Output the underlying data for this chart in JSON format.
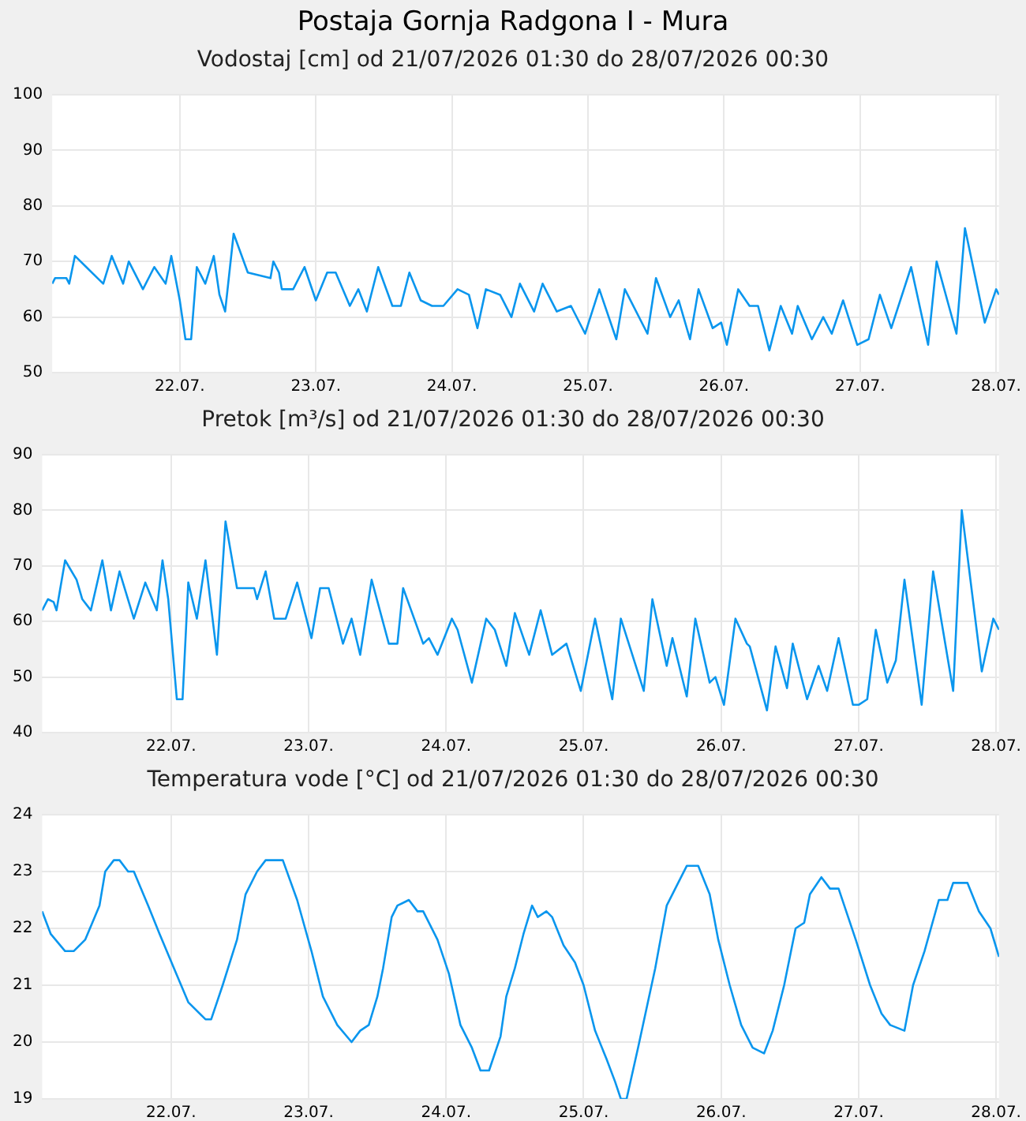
{
  "chart_data": [
    {
      "type": "line",
      "title": "Postaja Gornja Radgona I - Mura",
      "subtitle": "Vodostaj [cm] od 21/07/2026 01:30 do 28/07/2026 00:30",
      "color": "#0a96ee",
      "grid": true,
      "legend": false,
      "xlim": [
        "2026-07-21T01:30",
        "2026-07-28T00:30"
      ],
      "xticks": [
        {
          "value": "2026-07-22",
          "label": "22.07."
        },
        {
          "value": "2026-07-23",
          "label": "23.07."
        },
        {
          "value": "2026-07-24",
          "label": "24.07."
        },
        {
          "value": "2026-07-25",
          "label": "25.07."
        },
        {
          "value": "2026-07-26",
          "label": "26.07."
        },
        {
          "value": "2026-07-27",
          "label": "27.07."
        },
        {
          "value": "2026-07-28",
          "label": "28.07."
        }
      ],
      "ylim": [
        50,
        100
      ],
      "yticks": [
        50,
        60,
        70,
        80,
        90,
        100
      ],
      "x": [
        "2026-07-21T01:30",
        "2026-07-21T02:00",
        "2026-07-21T04:00",
        "2026-07-21T04:30",
        "2026-07-21T05:30",
        "2026-07-21T07:30",
        "2026-07-21T09:30",
        "2026-07-21T10:30",
        "2026-07-21T12:00",
        "2026-07-21T14:00",
        "2026-07-21T15:00",
        "2026-07-21T17:30",
        "2026-07-21T19:30",
        "2026-07-21T21:30",
        "2026-07-21T22:30",
        "2026-07-22T00:00",
        "2026-07-22T01:00",
        "2026-07-22T02:00",
        "2026-07-22T03:00",
        "2026-07-22T04:30",
        "2026-07-22T06:00",
        "2026-07-22T07:00",
        "2026-07-22T08:00",
        "2026-07-22T09:30",
        "2026-07-22T12:00",
        "2026-07-22T16:00",
        "2026-07-22T16:30",
        "2026-07-22T17:30",
        "2026-07-22T18:00",
        "2026-07-22T20:00",
        "2026-07-22T22:00",
        "2026-07-23T00:00",
        "2026-07-23T02:00",
        "2026-07-23T03:30",
        "2026-07-23T06:00",
        "2026-07-23T07:30",
        "2026-07-23T09:00",
        "2026-07-23T11:00",
        "2026-07-23T13:30",
        "2026-07-23T15:00",
        "2026-07-23T16:30",
        "2026-07-23T18:30",
        "2026-07-23T20:30",
        "2026-07-23T22:30",
        "2026-07-24T01:00",
        "2026-07-24T03:00",
        "2026-07-24T04:30",
        "2026-07-24T06:00",
        "2026-07-24T08:30",
        "2026-07-24T10:30",
        "2026-07-24T12:00",
        "2026-07-24T14:30",
        "2026-07-24T16:00",
        "2026-07-24T18:30",
        "2026-07-24T21:00",
        "2026-07-24T23:30",
        "2026-07-25T02:00",
        "2026-07-25T05:00",
        "2026-07-25T06:30",
        "2026-07-25T10:30",
        "2026-07-25T12:00",
        "2026-07-25T14:30",
        "2026-07-25T16:00",
        "2026-07-25T18:00",
        "2026-07-25T19:30",
        "2026-07-25T22:00",
        "2026-07-25T23:30",
        "2026-07-26T00:30",
        "2026-07-26T02:30",
        "2026-07-26T04:30",
        "2026-07-26T06:00",
        "2026-07-26T08:00",
        "2026-07-26T10:00",
        "2026-07-26T12:00",
        "2026-07-26T13:00",
        "2026-07-26T15:30",
        "2026-07-26T17:30",
        "2026-07-26T19:00",
        "2026-07-26T21:00",
        "2026-07-26T23:30",
        "2026-07-27T01:30",
        "2026-07-27T03:30",
        "2026-07-27T05:30",
        "2026-07-27T09:00",
        "2026-07-27T12:00",
        "2026-07-27T13:30",
        "2026-07-27T17:00",
        "2026-07-27T18:30",
        "2026-07-27T22:00",
        "2026-07-28T00:00",
        "2026-07-28T00:30"
      ],
      "values": [
        66,
        67,
        67,
        66,
        71,
        69,
        67,
        66,
        71,
        66,
        70,
        65,
        69,
        66,
        71,
        63,
        56,
        56,
        69,
        66,
        71,
        64,
        61,
        75,
        68,
        67,
        70,
        68,
        65,
        65,
        69,
        63,
        68,
        68,
        62,
        65,
        61,
        69,
        62,
        62,
        68,
        63,
        62,
        62,
        65,
        64,
        58,
        65,
        64,
        60,
        66,
        61,
        66,
        61,
        62,
        57,
        65,
        56,
        65,
        57,
        67,
        60,
        63,
        56,
        65,
        58,
        59,
        55,
        65,
        62,
        62,
        54,
        62,
        57,
        62,
        56,
        60,
        57,
        63,
        55,
        56,
        64,
        58,
        69,
        55,
        70,
        57,
        76,
        59,
        65,
        64
      ]
    },
    {
      "type": "line",
      "title": "Pretok [m³/s] od 21/07/2026 01:30 do 28/07/2026 00:30",
      "color": "#0a96ee",
      "grid": true,
      "legend": false,
      "xlim": [
        "2026-07-21T01:30",
        "2026-07-28T00:30"
      ],
      "xticks": [
        {
          "value": "2026-07-22",
          "label": "22.07."
        },
        {
          "value": "2026-07-23",
          "label": "23.07."
        },
        {
          "value": "2026-07-24",
          "label": "24.07."
        },
        {
          "value": "2026-07-25",
          "label": "25.07."
        },
        {
          "value": "2026-07-26",
          "label": "26.07."
        },
        {
          "value": "2026-07-27",
          "label": "27.07."
        },
        {
          "value": "2026-07-28",
          "label": "28.07."
        }
      ],
      "ylim": [
        40,
        90
      ],
      "yticks": [
        40,
        50,
        60,
        70,
        80,
        90
      ],
      "x": [
        "2026-07-21T01:30",
        "2026-07-21T02:30",
        "2026-07-21T03:30",
        "2026-07-21T04:00",
        "2026-07-21T05:30",
        "2026-07-21T07:30",
        "2026-07-21T08:30",
        "2026-07-21T10:00",
        "2026-07-21T12:00",
        "2026-07-21T13:30",
        "2026-07-21T15:00",
        "2026-07-21T17:30",
        "2026-07-21T19:30",
        "2026-07-21T21:30",
        "2026-07-21T22:30",
        "2026-07-21T23:30",
        "2026-07-22T01:00",
        "2026-07-22T02:00",
        "2026-07-22T03:00",
        "2026-07-22T04:30",
        "2026-07-22T06:00",
        "2026-07-22T08:00",
        "2026-07-22T09:30",
        "2026-07-22T11:30",
        "2026-07-22T14:30",
        "2026-07-22T15:00",
        "2026-07-22T16:30",
        "2026-07-22T18:00",
        "2026-07-22T20:00",
        "2026-07-22T22:00",
        "2026-07-23T00:30",
        "2026-07-23T02:00",
        "2026-07-23T03:30",
        "2026-07-23T06:00",
        "2026-07-23T07:30",
        "2026-07-23T09:00",
        "2026-07-23T11:00",
        "2026-07-23T14:00",
        "2026-07-23T15:30",
        "2026-07-23T16:30",
        "2026-07-23T20:00",
        "2026-07-23T21:00",
        "2026-07-23T22:30",
        "2026-07-24T01:00",
        "2026-07-24T02:00",
        "2026-07-24T04:30",
        "2026-07-24T07:00",
        "2026-07-24T08:30",
        "2026-07-24T10:30",
        "2026-07-24T12:00",
        "2026-07-24T14:30",
        "2026-07-24T16:30",
        "2026-07-24T18:30",
        "2026-07-24T21:00",
        "2026-07-24T23:30",
        "2026-07-25T02:00",
        "2026-07-25T05:00",
        "2026-07-25T06:30",
        "2026-07-25T10:30",
        "2026-07-25T12:00",
        "2026-07-25T14:30",
        "2026-07-25T15:30",
        "2026-07-25T18:00",
        "2026-07-25T19:30",
        "2026-07-25T22:00",
        "2026-07-25T23:00",
        "2026-07-26T00:30",
        "2026-07-26T02:30",
        "2026-07-26T04:30",
        "2026-07-26T05:00",
        "2026-07-26T08:00",
        "2026-07-26T09:30",
        "2026-07-26T11:30",
        "2026-07-26T12:30",
        "2026-07-26T15:00",
        "2026-07-26T17:00",
        "2026-07-26T18:30",
        "2026-07-26T20:30",
        "2026-07-26T23:00",
        "2026-07-27T00:00",
        "2026-07-27T01:30",
        "2026-07-27T03:00",
        "2026-07-27T05:00",
        "2026-07-27T06:30",
        "2026-07-27T08:00",
        "2026-07-27T11:00",
        "2026-07-27T13:00",
        "2026-07-27T16:30",
        "2026-07-27T18:00",
        "2026-07-27T21:30",
        "2026-07-27T23:30",
        "2026-07-28T00:30"
      ],
      "values": [
        62,
        64,
        63.5,
        62,
        71,
        67.5,
        64,
        62,
        71,
        62,
        69,
        60.5,
        67,
        62,
        71,
        64,
        46,
        46,
        67,
        60.5,
        71,
        54,
        78,
        66,
        66,
        64,
        69,
        60.5,
        60.5,
        67,
        57,
        66,
        66,
        56,
        60.5,
        54,
        67.5,
        56,
        56,
        66,
        56,
        57,
        54,
        60.5,
        58.5,
        49,
        60.5,
        58.5,
        52,
        61.5,
        54,
        62,
        54,
        56,
        47.5,
        60.5,
        46,
        60.5,
        47.5,
        64,
        52,
        57,
        46.5,
        60.5,
        49,
        50,
        45,
        60.5,
        56,
        55.5,
        44,
        55.5,
        48,
        56,
        46,
        52,
        47.5,
        57,
        45,
        45,
        46,
        58.5,
        49,
        53,
        67.5,
        45,
        69,
        47.5,
        80,
        51,
        60.5,
        58.5
      ]
    },
    {
      "type": "line",
      "title": "Temperatura vode [°C] od 21/07/2026 01:30 do 28/07/2026 00:30",
      "color": "#0a96ee",
      "grid": true,
      "legend": false,
      "xlim": [
        "2026-07-21T01:30",
        "2026-07-28T00:30"
      ],
      "xticks": [
        {
          "value": "2026-07-22",
          "label": "22.07."
        },
        {
          "value": "2026-07-23",
          "label": "23.07."
        },
        {
          "value": "2026-07-24",
          "label": "24.07."
        },
        {
          "value": "2026-07-25",
          "label": "25.07."
        },
        {
          "value": "2026-07-26",
          "label": "26.07."
        },
        {
          "value": "2026-07-27",
          "label": "27.07."
        },
        {
          "value": "2026-07-28",
          "label": "28.07."
        }
      ],
      "ylim": [
        19,
        24
      ],
      "yticks": [
        19,
        20,
        21,
        22,
        23,
        24
      ],
      "x": [
        "2026-07-21T01:30",
        "2026-07-21T03:00",
        "2026-07-21T05:30",
        "2026-07-21T07:00",
        "2026-07-21T09:00",
        "2026-07-21T11:30",
        "2026-07-21T12:30",
        "2026-07-21T14:00",
        "2026-07-21T15:00",
        "2026-07-21T16:30",
        "2026-07-21T17:30",
        "2026-07-21T20:00",
        "2026-07-21T22:00",
        "2026-07-22T00:30",
        "2026-07-22T03:00",
        "2026-07-22T06:00",
        "2026-07-22T07:00",
        "2026-07-22T09:00",
        "2026-07-22T11:30",
        "2026-07-22T13:00",
        "2026-07-22T15:00",
        "2026-07-22T16:30",
        "2026-07-22T19:30",
        "2026-07-22T22:00",
        "2026-07-23T00:30",
        "2026-07-23T02:30",
        "2026-07-23T05:00",
        "2026-07-23T07:30",
        "2026-07-23T09:00",
        "2026-07-23T10:30",
        "2026-07-23T12:00",
        "2026-07-23T13:00",
        "2026-07-23T14:30",
        "2026-07-23T15:30",
        "2026-07-23T17:30",
        "2026-07-23T19:00",
        "2026-07-23T20:00",
        "2026-07-23T22:30",
        "2026-07-24T00:30",
        "2026-07-24T02:30",
        "2026-07-24T04:30",
        "2026-07-24T06:00",
        "2026-07-24T07:30",
        "2026-07-24T09:30",
        "2026-07-24T10:30",
        "2026-07-24T12:00",
        "2026-07-24T13:30",
        "2026-07-24T15:00",
        "2026-07-24T16:00",
        "2026-07-24T17:30",
        "2026-07-24T18:30",
        "2026-07-24T20:30",
        "2026-07-24T22:30",
        "2026-07-25T00:00",
        "2026-07-25T02:00",
        "2026-07-25T04:00",
        "2026-07-25T05:30",
        "2026-07-25T06:30",
        "2026-07-25T07:30",
        "2026-07-25T09:30",
        "2026-07-25T12:30",
        "2026-07-25T14:30",
        "2026-07-25T16:30",
        "2026-07-25T18:00",
        "2026-07-25T20:00",
        "2026-07-25T22:00",
        "2026-07-25T23:30",
        "2026-07-26T01:30",
        "2026-07-26T03:30",
        "2026-07-26T05:30",
        "2026-07-26T07:30",
        "2026-07-26T09:00",
        "2026-07-26T11:00",
        "2026-07-26T13:00",
        "2026-07-26T14:30",
        "2026-07-26T15:30",
        "2026-07-26T17:30",
        "2026-07-26T19:00",
        "2026-07-26T20:30",
        "2026-07-26T23:30",
        "2026-07-27T02:00",
        "2026-07-27T04:00",
        "2026-07-27T05:30",
        "2026-07-27T08:00",
        "2026-07-27T09:30",
        "2026-07-27T11:30",
        "2026-07-27T14:00",
        "2026-07-27T15:30",
        "2026-07-27T16:30",
        "2026-07-27T19:00",
        "2026-07-27T21:00",
        "2026-07-27T23:00",
        "2026-07-28T00:30"
      ],
      "values": [
        22.3,
        21.9,
        21.6,
        21.6,
        21.8,
        22.4,
        23,
        23.2,
        23.2,
        23,
        23,
        22.4,
        21.9,
        21.3,
        20.7,
        20.4,
        20.4,
        21,
        21.8,
        22.6,
        23,
        23.2,
        23.2,
        22.5,
        21.6,
        20.8,
        20.3,
        20,
        20.2,
        20.3,
        20.8,
        21.3,
        22.2,
        22.4,
        22.5,
        22.3,
        22.3,
        21.8,
        21.2,
        20.3,
        19.9,
        19.5,
        19.5,
        20.1,
        20.8,
        21.3,
        21.9,
        22.4,
        22.2,
        22.3,
        22.2,
        21.7,
        21.4,
        21,
        20.2,
        19.7,
        19.3,
        19,
        19,
        19.9,
        21.3,
        22.4,
        22.8,
        23.1,
        23.1,
        22.6,
        21.8,
        21,
        20.3,
        19.9,
        19.8,
        20.2,
        21,
        22,
        22.1,
        22.6,
        22.9,
        22.7,
        22.7,
        21.8,
        21,
        20.5,
        20.3,
        20.2,
        21,
        21.6,
        22.5,
        22.5,
        22.8,
        22.8,
        22.3,
        22,
        21.5
      ]
    }
  ]
}
